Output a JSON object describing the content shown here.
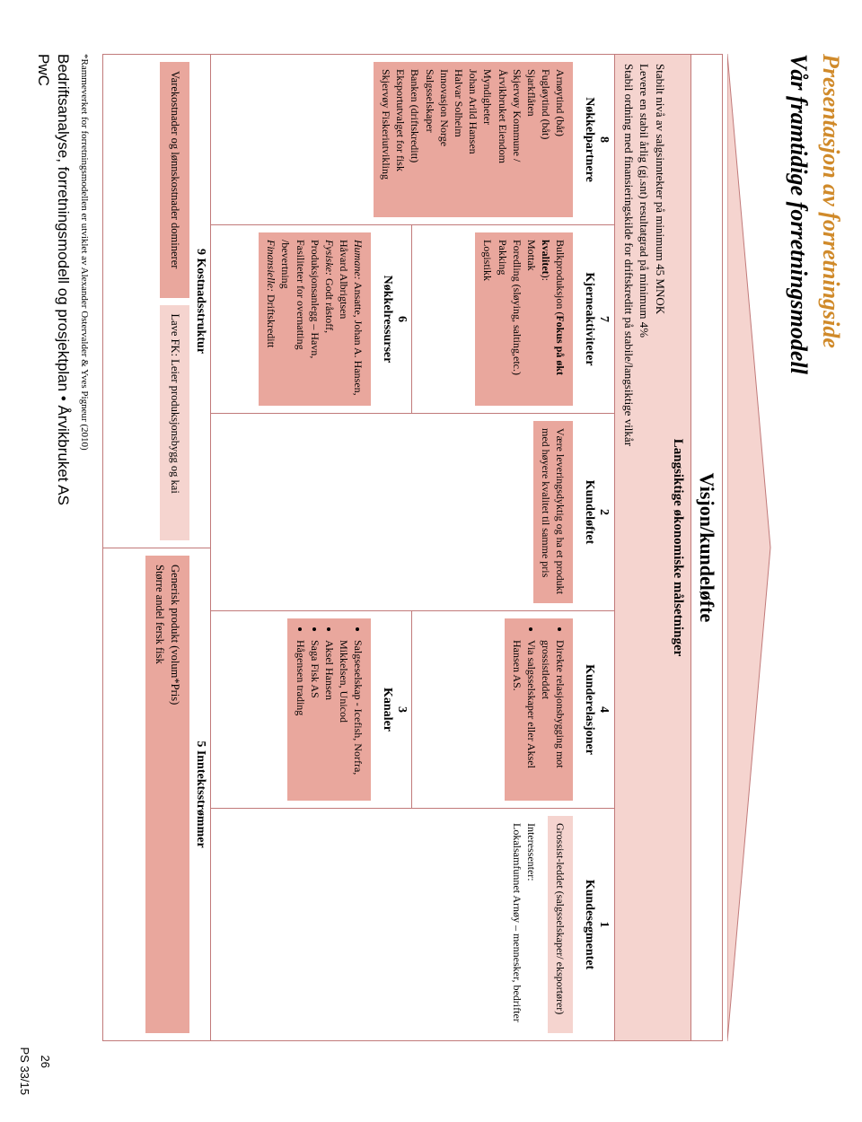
{
  "colors": {
    "orange_title": "#d08a2a",
    "light_pink": "#f5d4cf",
    "mid_pink": "#e9a79d",
    "border_pink": "#c17a7a",
    "tri_fill": "#f5d4cf",
    "tri_stroke": "#c17a7a"
  },
  "title1": "Presentasjon av forretningside",
  "title2": "Vår framtidige forretningsmodell",
  "vk": "Visjon/kundeløfte",
  "goals": {
    "heading": "Langsiktige økonomiske målsetninger",
    "l1": "Stabilt nivå av salgsinntekter på minimum 45 MNOK",
    "l2": "Levere en stabil årlig (gj.snt) resultatgrad på minimum 4%",
    "l3": "Stabil ordning med finansieringskilde for driftskreditt på stabile/langsiktige vilkår"
  },
  "box8": {
    "num": "8",
    "title": "Nøkkelpartnere",
    "items": [
      "Arnøytind (båt)",
      "Fugløytind (båt)",
      "Sjarkflåten",
      "Skjervøy Kommune / Årvikbruket Eiendom",
      "Myndigheter",
      "Johan Arild Hansen",
      "Halvar Solheim",
      "Innovasjon Norge",
      "Salgsselskaper",
      "Banken (driftskreditt)",
      "Eksportutvalget for fisk",
      "Skjervøy Fiskeriutvikling"
    ]
  },
  "box7": {
    "num": "7",
    "title": "Kjerneaktiviteter",
    "lead": "Bulkproduksjon (Fokus på økt kvalitet):",
    "items": [
      "Mottak",
      "Foredling (sløying, salting,etc.)",
      "Pakking",
      "Logistikk"
    ]
  },
  "box6": {
    "num": "6",
    "title": "Nøkkelressurser",
    "text": "Humane: Ansatte, Johan A. Hansen, Håvard Albrigtsen\nFysiske: Godt råstoff, Produksjonsanlegg – Havn, Fasiliteter for overnatting /bevertning\nFinansielle: Driftskreditt"
  },
  "box2": {
    "num": "2",
    "title": "Kundeløftet",
    "text": "Være leveringsdyktig og ha et produkt med høyere kvalitet til samme pris"
  },
  "box4": {
    "num": "4",
    "title": "Kunderelasjoner",
    "items": [
      "Direkte relasjonsbygging mot grossistleddet",
      "Via salgsselskaper eller Aksel Hansen AS."
    ]
  },
  "box3": {
    "num": "3",
    "title": "Kanaler",
    "items": [
      "Salgseselskap - Icefish, Norfra, Mikkelsen, Unicod",
      "Aksel Hansen",
      "Saga Fisk AS",
      "Hågensen trading"
    ]
  },
  "box1": {
    "num": "1",
    "title": "Kundesegmentet",
    "text1": "Grossist-leddet (salgsselskaper/ eksportører)",
    "text2": "Interessenter:\nLokalsamfunnet Arnøy – mennesker, bedrifter"
  },
  "box9": {
    "num": "9",
    "title": "Kostnadsstruktur",
    "a": "Varekostnader og lønnskostnader dominerer",
    "b": "Lave FK: Leier produksjonsbygg og kai"
  },
  "box5": {
    "num": "5",
    "title": "Inntektsstrømmer",
    "a": "Generisk produkt (volum*Pris)\nStørre andel fersk fisk"
  },
  "footnote": "*Rammeverket for forretningsmodellen er utviklet av Alexander Ostervalder & Yves Pigneur (2010)",
  "footer": "Bedriftsanalyse, forretningsmodell og prosjektplan • Årvikbruket AS",
  "pwc": "PwC",
  "pagenum": "26",
  "ps": "PS 33/15"
}
